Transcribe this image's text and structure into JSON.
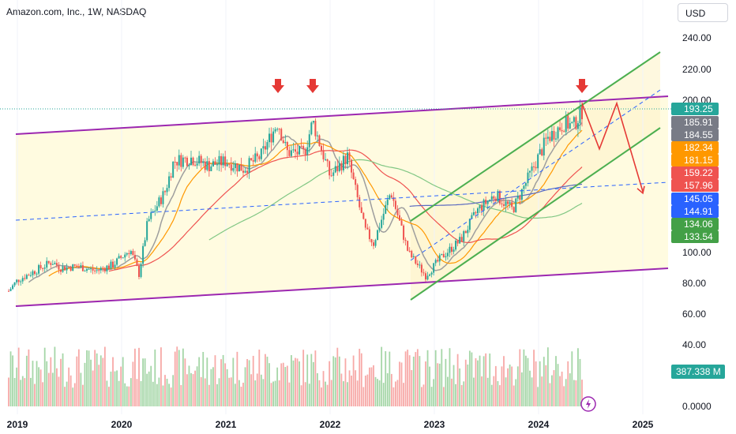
{
  "header": {
    "title": "Amazon.com, Inc., 1W, NASDAQ",
    "currency": "USD"
  },
  "colors": {
    "up": "#26a69a",
    "down": "#ef5350",
    "channel_fill": "#fffbe0",
    "channel_line": "#9c27b0",
    "rising_channel": "#4caf50",
    "dashed_line": "#2962ff",
    "arrow": "#e53935"
  },
  "chart_data": {
    "type": "candlestick",
    "y_axis": {
      "ticks": [
        0,
        40,
        60,
        80,
        100,
        200,
        220,
        240
      ],
      "tick_labels": [
        "0.0000",
        "40.00",
        "60.00",
        "80.00",
        "100.00",
        "200.00",
        "220.00",
        "240.00"
      ]
    },
    "x_axis": {
      "ticks": [
        "2019",
        "2020",
        "2021",
        "2022",
        "2023",
        "2024",
        "2025"
      ]
    },
    "price_labels": [
      {
        "value": "193.25",
        "color": "#26a69a"
      },
      {
        "value": "185.91",
        "color": "#787b86"
      },
      {
        "value": "184.55",
        "color": "#787b86"
      },
      {
        "value": "182.34",
        "color": "#ff9800"
      },
      {
        "value": "181.15",
        "color": "#ff9800"
      },
      {
        "value": "159.22",
        "color": "#ef5350"
      },
      {
        "value": "157.96",
        "color": "#ef5350"
      },
      {
        "value": "145.05",
        "color": "#2962ff"
      },
      {
        "value": "144.91",
        "color": "#2962ff"
      },
      {
        "value": "134.06",
        "color": "#43a047"
      },
      {
        "value": "133.54",
        "color": "#43a047"
      }
    ],
    "volume_label": {
      "value": "387.338 M",
      "color": "#26a69a"
    },
    "price_series": [
      [
        "2018-12",
        75
      ],
      [
        "2019-01",
        82
      ],
      [
        "2019-03",
        88
      ],
      [
        "2019-05",
        94
      ],
      [
        "2019-06",
        90
      ],
      [
        "2019-08",
        91
      ],
      [
        "2019-10",
        88
      ],
      [
        "2019-12",
        92
      ],
      [
        "2020-02",
        102
      ],
      [
        "2020-03",
        86
      ],
      [
        "2020-04",
        120
      ],
      [
        "2020-06",
        140
      ],
      [
        "2020-07",
        160
      ],
      [
        "2020-09",
        162
      ],
      [
        "2020-11",
        157
      ],
      [
        "2021-01",
        160
      ],
      [
        "2021-03",
        155
      ],
      [
        "2021-05",
        163
      ],
      [
        "2021-07",
        186
      ],
      [
        "2021-08",
        166
      ],
      [
        "2021-10",
        165
      ],
      [
        "2021-11",
        186
      ],
      [
        "2022-01",
        150
      ],
      [
        "2022-03",
        163
      ],
      [
        "2022-05",
        115
      ],
      [
        "2022-06",
        106
      ],
      [
        "2022-08",
        140
      ],
      [
        "2022-10",
        100
      ],
      [
        "2022-12",
        85
      ],
      [
        "2023-02",
        98
      ],
      [
        "2023-04",
        108
      ],
      [
        "2023-06",
        128
      ],
      [
        "2023-08",
        138
      ],
      [
        "2023-10",
        128
      ],
      [
        "2023-12",
        151
      ],
      [
        "2024-02",
        175
      ],
      [
        "2024-04",
        185
      ],
      [
        "2024-05",
        183
      ],
      [
        "2024-06",
        193
      ]
    ],
    "annotations": {
      "arrows": [
        "2021-07",
        "2021-11",
        "2024-06"
      ],
      "projection": [
        [
          "2024-06",
          198
        ],
        [
          "2024-08",
          168
        ],
        [
          "2024-10",
          198
        ],
        [
          "2025-01",
          140
        ]
      ]
    }
  }
}
